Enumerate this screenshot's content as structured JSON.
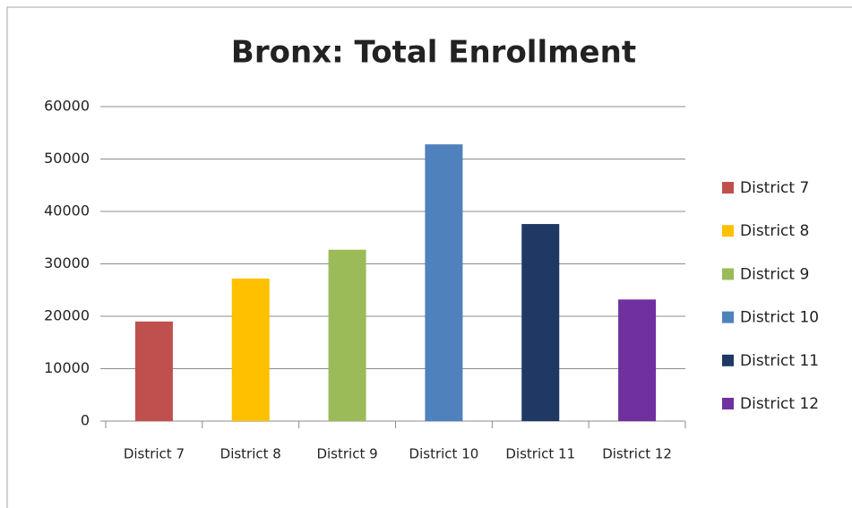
{
  "chart_data": {
    "type": "bar",
    "title": "Bronx: Total Enrollment",
    "categories": [
      "District 7",
      "District 8",
      "District 9",
      "District 10",
      "District 11",
      "District 12"
    ],
    "values": [
      19000,
      27200,
      32700,
      52800,
      37600,
      23200
    ],
    "colors": [
      "#c0504d",
      "#ffc000",
      "#9bbb59",
      "#4f81bd",
      "#1f3864",
      "#7030a0"
    ],
    "ylim": [
      0,
      60000
    ],
    "yticks": [
      0,
      10000,
      20000,
      30000,
      40000,
      50000,
      60000
    ],
    "grid": true,
    "legend": "right"
  }
}
